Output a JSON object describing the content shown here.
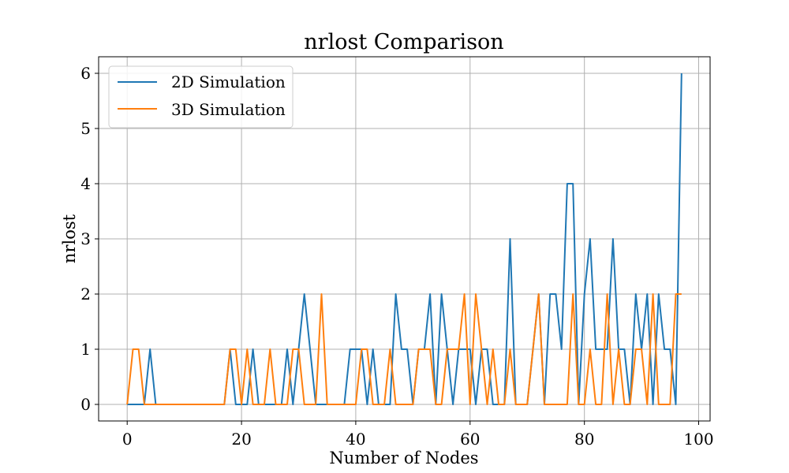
{
  "chart_data": {
    "type": "line",
    "title": "nrlost Comparison",
    "xlabel": "Number of Nodes",
    "ylabel": "nrlost",
    "xlim": [
      -5,
      102
    ],
    "ylim": [
      -0.3,
      6.3
    ],
    "xticks": [
      0,
      20,
      40,
      60,
      80,
      100
    ],
    "yticks": [
      0,
      1,
      2,
      3,
      4,
      5,
      6
    ],
    "grid": true,
    "legend_position": "top-left",
    "x": [
      0,
      1,
      2,
      3,
      4,
      5,
      6,
      7,
      8,
      9,
      10,
      11,
      12,
      13,
      14,
      15,
      16,
      17,
      18,
      19,
      20,
      21,
      22,
      23,
      24,
      25,
      26,
      27,
      28,
      29,
      30,
      31,
      32,
      33,
      34,
      35,
      36,
      37,
      38,
      39,
      40,
      41,
      42,
      43,
      44,
      45,
      46,
      47,
      48,
      49,
      50,
      51,
      52,
      53,
      54,
      55,
      56,
      57,
      58,
      59,
      60,
      61,
      62,
      63,
      64,
      65,
      66,
      67,
      68,
      69,
      70,
      71,
      72,
      73,
      74,
      75,
      76,
      77,
      78,
      79,
      80,
      81,
      82,
      83,
      84,
      85,
      86,
      87,
      88,
      89,
      90,
      91,
      92,
      93,
      94,
      95,
      96,
      97
    ],
    "series": [
      {
        "name": "2D Simulation",
        "color": "#1f77b4",
        "values": [
          0,
          0,
          0,
          0,
          1,
          0,
          0,
          0,
          0,
          0,
          0,
          0,
          0,
          0,
          0,
          0,
          0,
          0,
          1,
          0,
          0,
          0,
          1,
          0,
          0,
          0,
          0,
          0,
          1,
          0,
          1,
          2,
          1,
          0,
          0,
          0,
          0,
          0,
          0,
          1,
          1,
          1,
          0,
          1,
          0,
          0,
          0,
          2,
          1,
          1,
          0,
          1,
          1,
          2,
          0,
          2,
          1,
          0,
          1,
          1,
          1,
          0,
          1,
          1,
          0,
          0,
          0,
          3,
          0,
          0,
          0,
          1,
          2,
          0,
          2,
          2,
          1,
          4,
          4,
          0,
          2,
          3,
          1,
          1,
          1,
          3,
          1,
          1,
          0,
          2,
          1,
          2,
          0,
          2,
          1,
          1,
          0,
          6
        ]
      },
      {
        "name": "3D Simulation",
        "color": "#ff7f0e",
        "values": [
          0,
          1,
          1,
          0,
          0,
          0,
          0,
          0,
          0,
          0,
          0,
          0,
          0,
          0,
          0,
          0,
          0,
          0,
          1,
          1,
          0,
          1,
          0,
          0,
          0,
          1,
          0,
          0,
          0,
          1,
          1,
          0,
          0,
          0,
          2,
          0,
          0,
          0,
          0,
          0,
          0,
          1,
          1,
          0,
          0,
          0,
          1,
          0,
          0,
          0,
          0,
          1,
          1,
          1,
          0,
          0,
          1,
          1,
          1,
          2,
          0,
          2,
          1,
          0,
          1,
          0,
          0,
          1,
          0,
          0,
          0,
          1,
          2,
          0,
          0,
          0,
          0,
          0,
          2,
          0,
          0,
          1,
          0,
          0,
          2,
          0,
          1,
          0,
          0,
          1,
          1,
          0,
          2,
          0,
          0,
          0,
          2,
          2
        ]
      }
    ]
  }
}
